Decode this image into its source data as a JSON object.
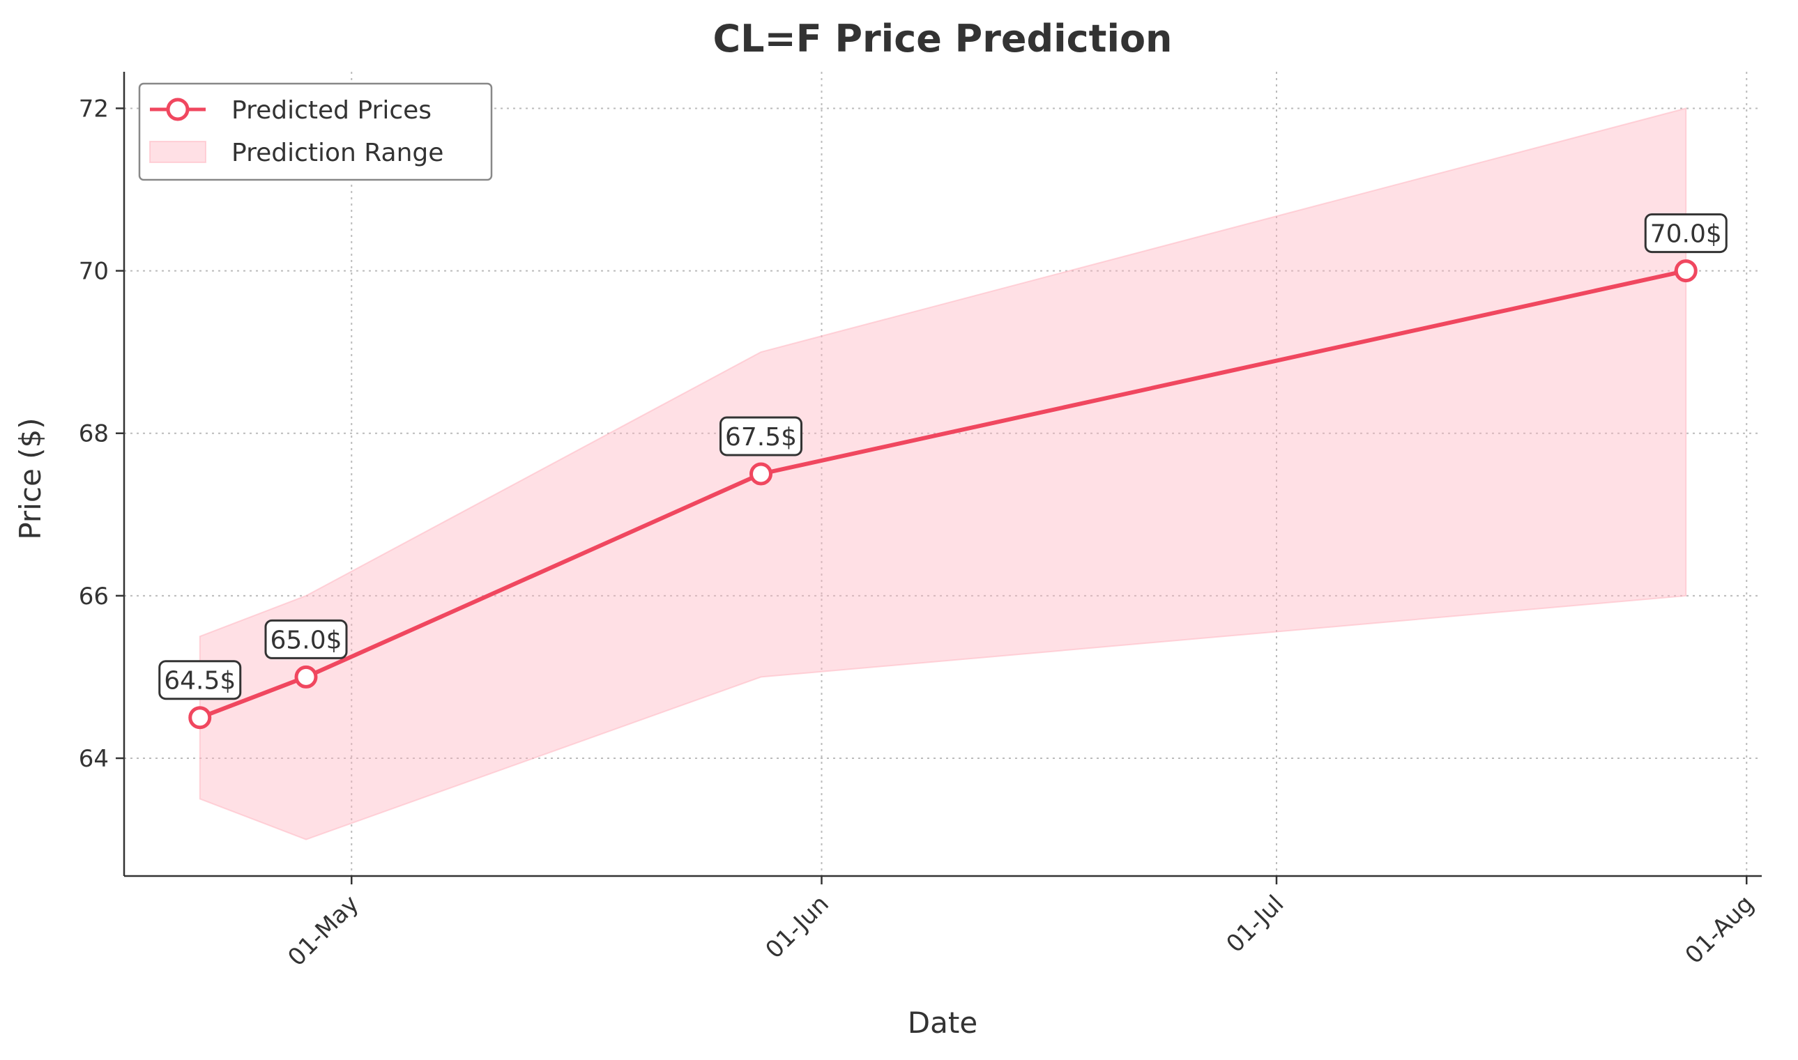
{
  "colors": {
    "line": "#f0475f",
    "band_fill": "#ffb6c1",
    "text": "#333333",
    "label_box_edge": "#333333"
  },
  "chart_data": {
    "type": "line",
    "title": "CL=F Price Prediction",
    "xlabel": "Date",
    "ylabel": "Price ($)",
    "x_type": "date",
    "xlim": [
      "2025-04-16",
      "2025-08-02"
    ],
    "ylim": [
      62.55,
      72.45
    ],
    "x_ticks": [
      {
        "date": "2025-05-01",
        "label": "01-May"
      },
      {
        "date": "2025-06-01",
        "label": "01-Jun"
      },
      {
        "date": "2025-07-01",
        "label": "01-Jul"
      },
      {
        "date": "2025-08-01",
        "label": "01-Aug"
      }
    ],
    "y_ticks": [
      64,
      66,
      68,
      70,
      72
    ],
    "grid": true,
    "legend": {
      "position": "top-left",
      "entries": [
        "Predicted Prices",
        "Prediction Range"
      ]
    },
    "series": [
      {
        "name": "Predicted Prices",
        "kind": "line-markers",
        "x": [
          "2025-04-21",
          "2025-04-28",
          "2025-05-28",
          "2025-07-28"
        ],
        "y": [
          64.5,
          65.0,
          67.5,
          70.0
        ],
        "data_labels": [
          "64.5$",
          "65.0$",
          "67.5$",
          "70.0$"
        ]
      },
      {
        "name": "Prediction Range",
        "kind": "band",
        "x": [
          "2025-04-21",
          "2025-04-28",
          "2025-05-28",
          "2025-07-28"
        ],
        "lower": [
          63.5,
          63.0,
          65.0,
          66.0
        ],
        "upper": [
          65.5,
          66.0,
          69.0,
          72.0
        ]
      }
    ]
  }
}
